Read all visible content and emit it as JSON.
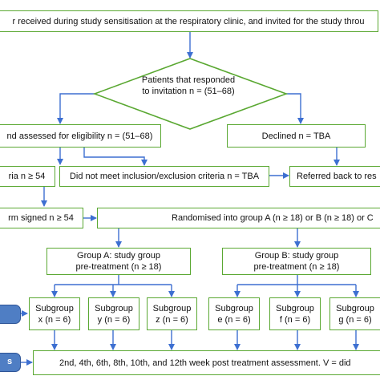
{
  "top_box": "r received during study sensitisation at the respiratory clinic, and invited for the study throu",
  "decision": {
    "line1": "Patients that responded",
    "line2": "to invitation n = (51–68)"
  },
  "assessed": "nd assessed for eligibility n = (51–68)",
  "declined": "Declined n = TBA",
  "criteria_met": "ria n ≥ 54",
  "not_met": "Did not meet inclusion/exclusion criteria n = TBA",
  "referred": "Referred back to res",
  "consent": "rm signed n ≥ 54",
  "randomised": "Randomised into group A (n ≥ 18) or B (n ≥ 18) or C",
  "group_a": {
    "line1": "Group A: study group",
    "line2": "pre-treatment (n ≥ 18)"
  },
  "group_b": {
    "line1": "Group B: study group",
    "line2": "pre-treatment (n ≥ 18)"
  },
  "subgroups": [
    {
      "title": "Subgroup",
      "value": "x (n = 6)"
    },
    {
      "title": "Subgroup",
      "value": "y (n = 6)"
    },
    {
      "title": "Subgroup",
      "value": "z (n = 6)"
    },
    {
      "title": "Subgroup",
      "value": "e (n = 6)"
    },
    {
      "title": "Subgroup",
      "value": "f (n = 6)"
    },
    {
      "title": "Subgroup",
      "value": "g (n = 6)"
    }
  ],
  "assessment": "2nd, 4th, 6th, 8th, 10th, and 12th week post treatment assessment. V = did",
  "side_label_bottom": "s",
  "colors": {
    "box_border": "#5aa832",
    "arrow": "#3d6fd1",
    "side_label": "#4f7ec4"
  }
}
